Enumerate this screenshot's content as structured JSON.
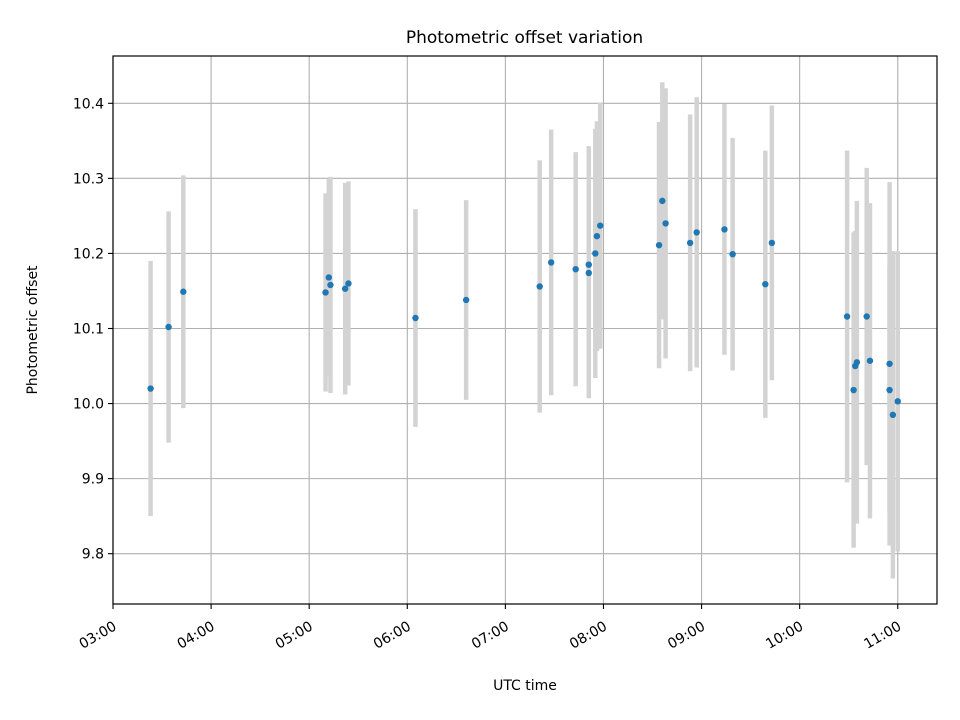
{
  "chart_data": {
    "type": "scatter",
    "title": "Photometric offset variation",
    "xlabel": "UTC time",
    "ylabel": "Photometric offset",
    "x_ticks": [
      "03:00",
      "04:00",
      "05:00",
      "06:00",
      "07:00",
      "08:00",
      "09:00",
      "10:00",
      "11:00"
    ],
    "y_ticks": [
      "9.8",
      "9.9",
      "10.0",
      "10.1",
      "10.2",
      "10.3",
      "10.4"
    ],
    "xlim": [
      "03:00",
      "11:24"
    ],
    "ylim": [
      9.733,
      10.463
    ],
    "grid": true,
    "marker_color": "#1f77b4",
    "errorbar_color": "#d3d3d3",
    "points": [
      {
        "x": "03:23",
        "y": 10.02,
        "err": 0.17
      },
      {
        "x": "03:34",
        "y": 10.102,
        "err": 0.154
      },
      {
        "x": "03:43",
        "y": 10.149,
        "err": 0.155
      },
      {
        "x": "05:10",
        "y": 10.148,
        "err": 0.132
      },
      {
        "x": "05:12",
        "y": 10.168,
        "err": 0.131
      },
      {
        "x": "05:13",
        "y": 10.158,
        "err": 0.144
      },
      {
        "x": "05:22",
        "y": 10.153,
        "err": 0.141
      },
      {
        "x": "05:24",
        "y": 10.16,
        "err": 0.136
      },
      {
        "x": "06:05",
        "y": 10.114,
        "err": 0.145
      },
      {
        "x": "06:36",
        "y": 10.138,
        "err": 0.133
      },
      {
        "x": "07:21",
        "y": 10.156,
        "err": 0.168
      },
      {
        "x": "07:28",
        "y": 10.188,
        "err": 0.177
      },
      {
        "x": "07:43",
        "y": 10.179,
        "err": 0.156
      },
      {
        "x": "07:51",
        "y": 10.174,
        "err": 0.167
      },
      {
        "x": "07:51",
        "y": 10.185,
        "err": 0.158
      },
      {
        "x": "07:55",
        "y": 10.2,
        "err": 0.166
      },
      {
        "x": "07:56",
        "y": 10.223,
        "err": 0.153
      },
      {
        "x": "07:58",
        "y": 10.237,
        "err": 0.164
      },
      {
        "x": "08:34",
        "y": 10.211,
        "err": 0.164
      },
      {
        "x": "08:36",
        "y": 10.27,
        "err": 0.158
      },
      {
        "x": "08:38",
        "y": 10.24,
        "err": 0.18
      },
      {
        "x": "08:53",
        "y": 10.214,
        "err": 0.171
      },
      {
        "x": "08:57",
        "y": 10.228,
        "err": 0.18
      },
      {
        "x": "09:14",
        "y": 10.232,
        "err": 0.167
      },
      {
        "x": "09:19",
        "y": 10.199,
        "err": 0.155
      },
      {
        "x": "09:39",
        "y": 10.159,
        "err": 0.178
      },
      {
        "x": "09:43",
        "y": 10.214,
        "err": 0.183
      },
      {
        "x": "10:29",
        "y": 10.116,
        "err": 0.221
      },
      {
        "x": "10:33",
        "y": 10.018,
        "err": 0.21
      },
      {
        "x": "10:34",
        "y": 10.05,
        "err": 0.18
      },
      {
        "x": "10:35",
        "y": 10.055,
        "err": 0.215
      },
      {
        "x": "10:41",
        "y": 10.116,
        "err": 0.198
      },
      {
        "x": "10:43",
        "y": 10.057,
        "err": 0.21
      },
      {
        "x": "10:55",
        "y": 10.018,
        "err": 0.165
      },
      {
        "x": "10:55",
        "y": 10.053,
        "err": 0.242
      },
      {
        "x": "10:57",
        "y": 9.985,
        "err": 0.218
      },
      {
        "x": "11:00",
        "y": 10.003,
        "err": 0.2
      }
    ]
  }
}
